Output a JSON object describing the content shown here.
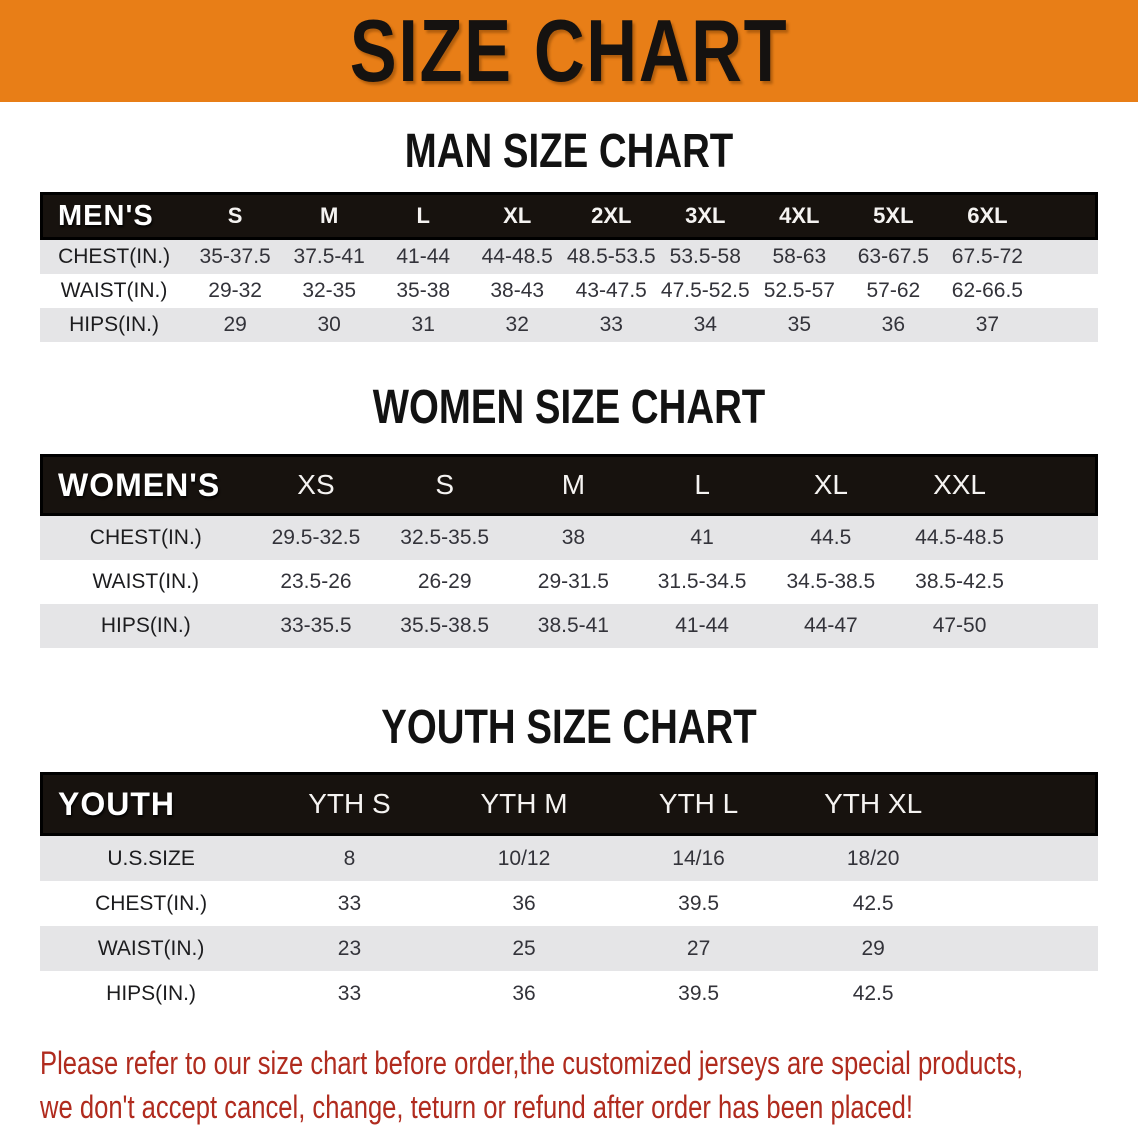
{
  "banner": {
    "title": "SIZE CHART"
  },
  "colors": {
    "banner_bg": "#e87e17",
    "header_bar_bg": "#17120e",
    "row_stripe": "#e5e5e7",
    "disclaimer_text": "#b02b1e"
  },
  "sections": [
    {
      "heading": "MAN SIZE CHART",
      "table": {
        "header_label": "MEN'S",
        "columns": [
          "S",
          "M",
          "L",
          "XL",
          "2XL",
          "3XL",
          "4XL",
          "5XL",
          "6XL"
        ],
        "rows": [
          {
            "label": "CHEST(IN.)",
            "values": [
              "35-37.5",
              "37.5-41",
              "41-44",
              "44-48.5",
              "48.5-53.5",
              "53.5-58",
              "58-63",
              "63-67.5",
              "67.5-72"
            ]
          },
          {
            "label": "WAIST(IN.)",
            "values": [
              "29-32",
              "32-35",
              "35-38",
              "38-43",
              "43-47.5",
              "47.5-52.5",
              "52.5-57",
              "57-62",
              "62-66.5"
            ]
          },
          {
            "label": "HIPS(IN.)",
            "values": [
              "29",
              "30",
              "31",
              "32",
              "33",
              "34",
              "35",
              "36",
              "37"
            ]
          }
        ]
      }
    },
    {
      "heading": "WOMEN SIZE CHART",
      "table": {
        "header_label": "WOMEN'S",
        "columns": [
          "XS",
          "S",
          "M",
          "L",
          "XL",
          "XXL"
        ],
        "rows": [
          {
            "label": "CHEST(IN.)",
            "values": [
              "29.5-32.5",
              "32.5-35.5",
              "38",
              "41",
              "44.5",
              "44.5-48.5"
            ]
          },
          {
            "label": "WAIST(IN.)",
            "values": [
              "23.5-26",
              "26-29",
              "29-31.5",
              "31.5-34.5",
              "34.5-38.5",
              "38.5-42.5"
            ]
          },
          {
            "label": "HIPS(IN.)",
            "values": [
              "33-35.5",
              "35.5-38.5",
              "38.5-41",
              "41-44",
              "44-47",
              "47-50"
            ]
          }
        ]
      }
    },
    {
      "heading": "YOUTH SIZE CHART",
      "table": {
        "header_label": "YOUTH",
        "columns": [
          "YTH S",
          "YTH M",
          "YTH L",
          "YTH XL"
        ],
        "rows": [
          {
            "label": "U.S.SIZE",
            "values": [
              "8",
              "10/12",
              "14/16",
              "18/20"
            ]
          },
          {
            "label": "CHEST(IN.)",
            "values": [
              "33",
              "36",
              "39.5",
              "42.5"
            ]
          },
          {
            "label": "WAIST(IN.)",
            "values": [
              "23",
              "25",
              "27",
              "29"
            ]
          },
          {
            "label": "HIPS(IN.)",
            "values": [
              "33",
              "36",
              "39.5",
              "42.5"
            ]
          }
        ]
      }
    }
  ],
  "disclaimer": {
    "line1": "Please refer to our size chart before order,the customized jerseys are special products,",
    "line2": "we don't accept cancel, change, teturn or refund after order has been placed!"
  }
}
